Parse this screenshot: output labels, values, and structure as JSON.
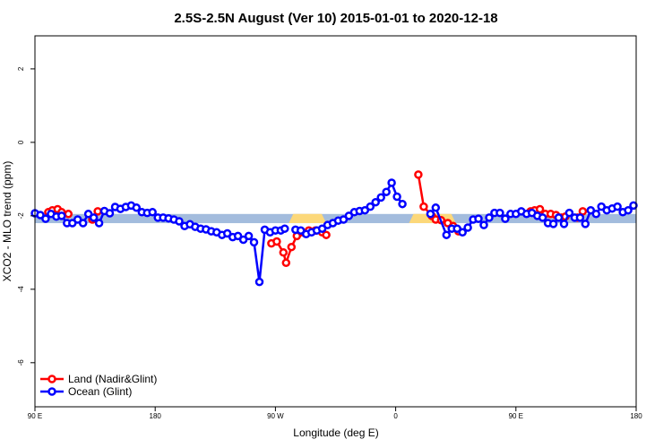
{
  "chart_data": {
    "type": "line",
    "title": "2.5S-2.5N August (Ver 10)   2015-01-01 to 2020-12-18",
    "xlabel": "Longitude (deg E)",
    "ylabel": "XCO2 - MLO trend (ppm)",
    "xlim": [
      -90,
      360
    ],
    "ylim": [
      -7.2,
      2.9
    ],
    "x_ticks": [
      {
        "value": -90,
        "label": "90 E"
      },
      {
        "value": 0,
        "label": "180"
      },
      {
        "value": 90,
        "label": "90 W"
      },
      {
        "value": 180,
        "label": "0"
      },
      {
        "value": 270,
        "label": "90 E"
      },
      {
        "value": 360,
        "label": "180"
      }
    ],
    "y_ticks": [
      {
        "value": 2,
        "label": "2"
      },
      {
        "value": 0,
        "label": "0"
      },
      {
        "value": -2,
        "label": "-2"
      },
      {
        "value": -4,
        "label": "-4"
      },
      {
        "value": -6,
        "label": "-6"
      }
    ],
    "reference_band": {
      "y_min": -2.2,
      "y_max": -1.95,
      "color": "#a3bcdd"
    },
    "land_segments": [
      {
        "x_min": 100,
        "x_max": 128,
        "color": "#fcd87a"
      },
      {
        "x_min": 190,
        "x_max": 225,
        "color": "#fcd87a"
      }
    ],
    "series": [
      {
        "name": "Land (Nadir&Glint)",
        "color": "#ff0000",
        "segments": [
          {
            "x": [
              -80,
              -77,
              -73,
              -70,
              -65
            ],
            "y": [
              -1.9,
              -1.85,
              -1.82,
              -1.9,
              -1.95
            ]
          },
          {
            "x": [
              -47,
              -43
            ],
            "y": [
              -2.1,
              -1.88
            ]
          },
          {
            "x": [
              87,
              91,
              96,
              98,
              102,
              106,
              110,
              115,
              120,
              125,
              128
            ],
            "y": [
              -2.75,
              -2.7,
              -3.0,
              -3.28,
              -2.85,
              -2.55,
              -2.45,
              -2.4,
              -2.4,
              -2.45,
              -2.52
            ]
          },
          {
            "x": [
              197,
              201,
              207,
              210,
              214,
              219,
              223,
              227
            ],
            "y": [
              -0.88,
              -1.75,
              -2.0,
              -2.1,
              -2.12,
              -2.2,
              -2.28,
              -2.42
            ]
          },
          {
            "x": [
              281,
              284,
              288,
              292,
              296,
              300,
              304,
              307
            ],
            "y": [
              -1.88,
              -1.85,
              -1.82,
              -1.95,
              -1.95,
              -1.98,
              -2.05,
              -2.02
            ]
          },
          {
            "x": [
              316,
              320
            ],
            "y": [
              -2.05,
              -1.88
            ]
          }
        ]
      },
      {
        "name": "Ocean (Glint)",
        "color": "#0000ff",
        "segments": [
          {
            "x": [
              -90,
              -86,
              -82,
              -78,
              -74,
              -70,
              -66,
              -62,
              -58,
              -54,
              -50,
              -46,
              -42,
              -38,
              -34,
              -30,
              -26,
              -22,
              -18,
              -14,
              -10,
              -6,
              -2,
              2,
              6,
              10,
              14,
              18,
              22,
              26,
              30,
              34,
              38,
              42,
              46,
              50,
              54,
              58,
              62,
              66,
              70,
              74,
              78,
              82,
              86,
              90,
              94,
              97
            ],
            "y": [
              -1.93,
              -1.98,
              -2.08,
              -1.95,
              -2.02,
              -2.0,
              -2.2,
              -2.2,
              -2.1,
              -2.2,
              -1.95,
              -2.05,
              -2.2,
              -1.87,
              -1.93,
              -1.76,
              -1.81,
              -1.76,
              -1.72,
              -1.78,
              -1.9,
              -1.92,
              -1.9,
              -2.05,
              -2.05,
              -2.07,
              -2.1,
              -2.15,
              -2.28,
              -2.23,
              -2.3,
              -2.35,
              -2.37,
              -2.42,
              -2.45,
              -2.52,
              -2.48,
              -2.58,
              -2.55,
              -2.65,
              -2.55,
              -2.72,
              -3.8,
              -2.38,
              -2.45,
              -2.4,
              -2.4,
              -2.35
            ]
          },
          {
            "x": [
              105,
              109,
              113,
              117,
              121,
              125,
              129,
              133,
              137,
              141,
              145,
              149,
              153,
              157,
              161,
              165,
              169,
              173,
              177,
              181,
              185
            ],
            "y": [
              -2.38,
              -2.4,
              -2.5,
              -2.45,
              -2.4,
              -2.35,
              -2.25,
              -2.2,
              -2.13,
              -2.1,
              -2.0,
              -1.9,
              -1.87,
              -1.85,
              -1.75,
              -1.63,
              -1.5,
              -1.35,
              -1.1,
              -1.48,
              -1.68
            ]
          },
          {
            "x": [
              206,
              210,
              218,
              222,
              226,
              230,
              234,
              238,
              242,
              246,
              250,
              254,
              258,
              262,
              266,
              270,
              274,
              278,
              282,
              286,
              290,
              294,
              298,
              302,
              306,
              310,
              314,
              318,
              322,
              326,
              330,
              334,
              338,
              342,
              346,
              350,
              354,
              358
            ],
            "y": [
              -1.95,
              -1.78,
              -2.52,
              -2.35,
              -2.35,
              -2.45,
              -2.32,
              -2.1,
              -2.08,
              -2.25,
              -2.05,
              -1.92,
              -1.92,
              -2.08,
              -1.95,
              -1.95,
              -1.88,
              -1.95,
              -1.92,
              -2.0,
              -2.05,
              -2.2,
              -2.22,
              -2.05,
              -2.22,
              -1.92,
              -2.05,
              -2.05,
              -2.22,
              -1.85,
              -1.95,
              -1.75,
              -1.85,
              -1.8,
              -1.75,
              -1.9,
              -1.85,
              -1.72
            ]
          }
        ]
      }
    ],
    "legend": {
      "position": "bottom-left",
      "entries": [
        {
          "label": "Land (Nadir&Glint)",
          "color": "#ff0000"
        },
        {
          "label": "Ocean (Glint)",
          "color": "#0000ff"
        }
      ]
    }
  }
}
